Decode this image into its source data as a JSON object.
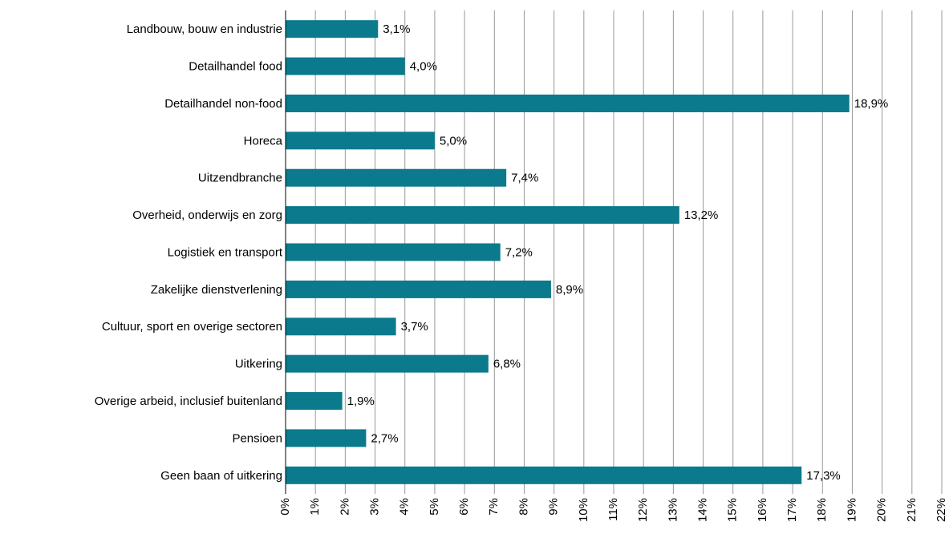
{
  "chart_data": {
    "type": "bar",
    "orientation": "horizontal",
    "categories": [
      "Landbouw, bouw en industrie",
      "Detailhandel food",
      "Detailhandel non-food",
      "Horeca",
      "Uitzendbranche",
      "Overheid, onderwijs en zorg",
      "Logistiek en transport",
      "Zakelijke dienstverlening",
      "Cultuur, sport en overige sectoren",
      "Uitkering",
      "Overige arbeid, inclusief buitenland",
      "Pensioen",
      "Geen baan of uitkering"
    ],
    "values": [
      3.1,
      4.0,
      18.9,
      5.0,
      7.4,
      13.2,
      7.2,
      8.9,
      3.7,
      6.8,
      1.9,
      2.7,
      17.3
    ],
    "value_labels": [
      "3,1%",
      "4,0%",
      "18,9%",
      "5,0%",
      "7,4%",
      "13,2%",
      "7,2%",
      "8,9%",
      "3,7%",
      "6,8%",
      "1,9%",
      "2,7%",
      "17,3%"
    ],
    "color": "#0a7a8c",
    "xlim": [
      0,
      22
    ],
    "xticks": [
      {
        "value": 0,
        "label": "0%"
      },
      {
        "value": 1,
        "label": "1%"
      },
      {
        "value": 2,
        "label": "2%"
      },
      {
        "value": 3,
        "label": "3%"
      },
      {
        "value": 4,
        "label": "4%"
      },
      {
        "value": 5,
        "label": "5%"
      },
      {
        "value": 6,
        "label": "6%"
      },
      {
        "value": 7,
        "label": "7%"
      },
      {
        "value": 8,
        "label": "8%"
      },
      {
        "value": 9,
        "label": "9%"
      },
      {
        "value": 10,
        "label": "10%"
      },
      {
        "value": 11,
        "label": "11%"
      },
      {
        "value": 12,
        "label": "12%"
      },
      {
        "value": 13,
        "label": "13%"
      },
      {
        "value": 14,
        "label": "14%"
      },
      {
        "value": 15,
        "label": "15%"
      },
      {
        "value": 16,
        "label": "16%"
      },
      {
        "value": 17,
        "label": "17%"
      },
      {
        "value": 18,
        "label": "18%"
      },
      {
        "value": 19,
        "label": "19%"
      },
      {
        "value": 20,
        "label": "20%"
      },
      {
        "value": 21,
        "label": "21%"
      },
      {
        "value": 22,
        "label": "22%"
      }
    ],
    "grid": true
  }
}
